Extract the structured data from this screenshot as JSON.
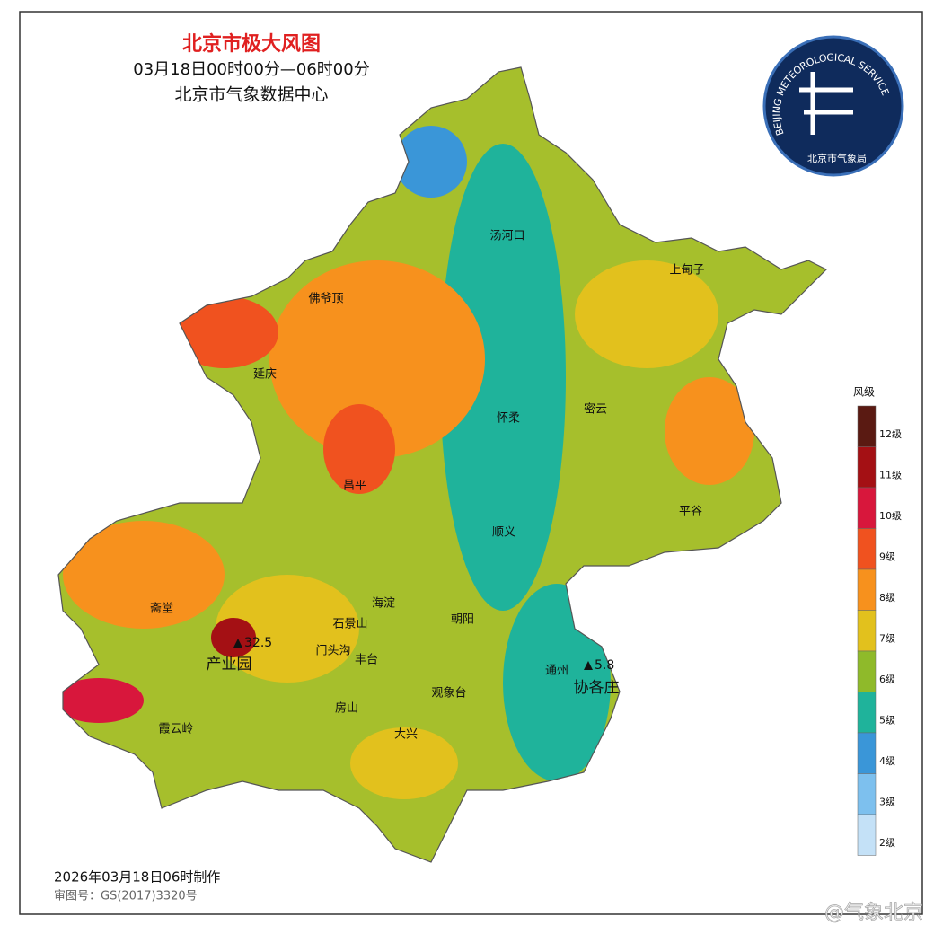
{
  "header": {
    "title": "北京市极大风图",
    "period": "03月18日00时00分—06时00分",
    "source": "北京市气象数据中心"
  },
  "logo": {
    "arc_text": "BEIJING METEOROLOGICAL SERVICE",
    "name": "北京市气象局"
  },
  "places": [
    "汤河口",
    "上甸子",
    "佛爷顶",
    "延庆",
    "怀柔",
    "密云",
    "昌平",
    "平谷",
    "顺义",
    "海淀",
    "斋堂",
    "朝阳",
    "石景山",
    "门头沟",
    "丰台",
    "通州",
    "观象台",
    "房山",
    "霞云岭",
    "大兴"
  ],
  "stations": [
    {
      "name": "产业园",
      "value": 32.5
    },
    {
      "name": "协各庄",
      "value": 5.8
    }
  ],
  "legend": {
    "title": "风级",
    "items": [
      {
        "label": "12级",
        "color": "#5a1a12"
      },
      {
        "label": "11级",
        "color": "#a41014"
      },
      {
        "label": "10级",
        "color": "#d8173c"
      },
      {
        "label": "9级",
        "color": "#f0521f"
      },
      {
        "label": "8级",
        "color": "#f7911d"
      },
      {
        "label": "7级",
        "color": "#e2c11d"
      },
      {
        "label": "6级",
        "color": "#8fba2a"
      },
      {
        "label": "5级",
        "color": "#1fb39b"
      },
      {
        "label": "4级",
        "color": "#3a96d8"
      },
      {
        "label": "3级",
        "color": "#7dc0ee"
      },
      {
        "label": "2级",
        "color": "#c4e1f7"
      }
    ]
  },
  "footer": {
    "made": "2026年03月18日06时制作",
    "approval": "审图号：GS(2017)3320号"
  },
  "watermark": "@气象北京"
}
